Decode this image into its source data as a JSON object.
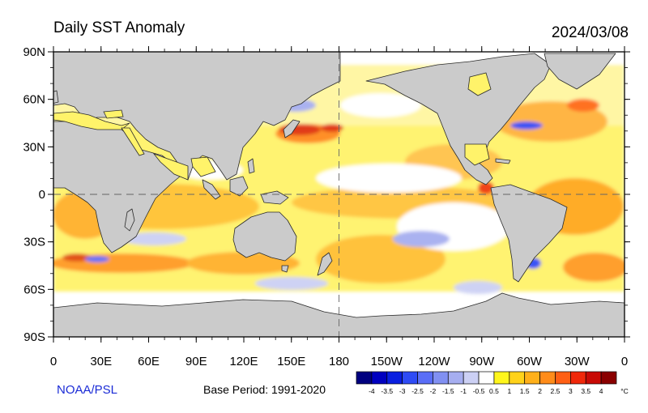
{
  "header": {
    "title": "Daily SST Anomaly",
    "date": "2024/03/08"
  },
  "footer": {
    "credit": "NOAA/PSL",
    "base_period": "Base Period: 1991-2020"
  },
  "map": {
    "projection": "equirectangular",
    "lon_range": [
      0,
      360
    ],
    "lat_range": [
      -90,
      90
    ],
    "land_color": "#cbcbcb",
    "ocean_background": "#ffffff",
    "reference_lines": [
      "equator",
      "dateline"
    ],
    "lat_labels": [
      "90N",
      "60N",
      "30N",
      "0",
      "30S",
      "60S",
      "90S"
    ],
    "lon_labels": [
      "0",
      "30E",
      "60E",
      "90E",
      "120E",
      "150E",
      "180",
      "150W",
      "120W",
      "90W",
      "60W",
      "30W",
      "0"
    ]
  },
  "legend": {
    "unit": "°C",
    "labels": [
      "-4",
      "-3.5",
      "-3",
      "-2.5",
      "-2",
      "-1.5",
      "-1",
      "-0.5",
      "0.5",
      "1",
      "1.5",
      "2",
      "2.5",
      "3",
      "3.5",
      "4"
    ],
    "colors": [
      "#00007f",
      "#0000bf",
      "#0a1fe0",
      "#2e4bf5",
      "#5a6ef7",
      "#8190f2",
      "#a6aef0",
      "#ccd0f4",
      "#ffffff",
      "#fff61c",
      "#ffd21a",
      "#ffb01a",
      "#ff8c1a",
      "#ff5f14",
      "#f0280a",
      "#c80a05",
      "#8a0000"
    ]
  }
}
